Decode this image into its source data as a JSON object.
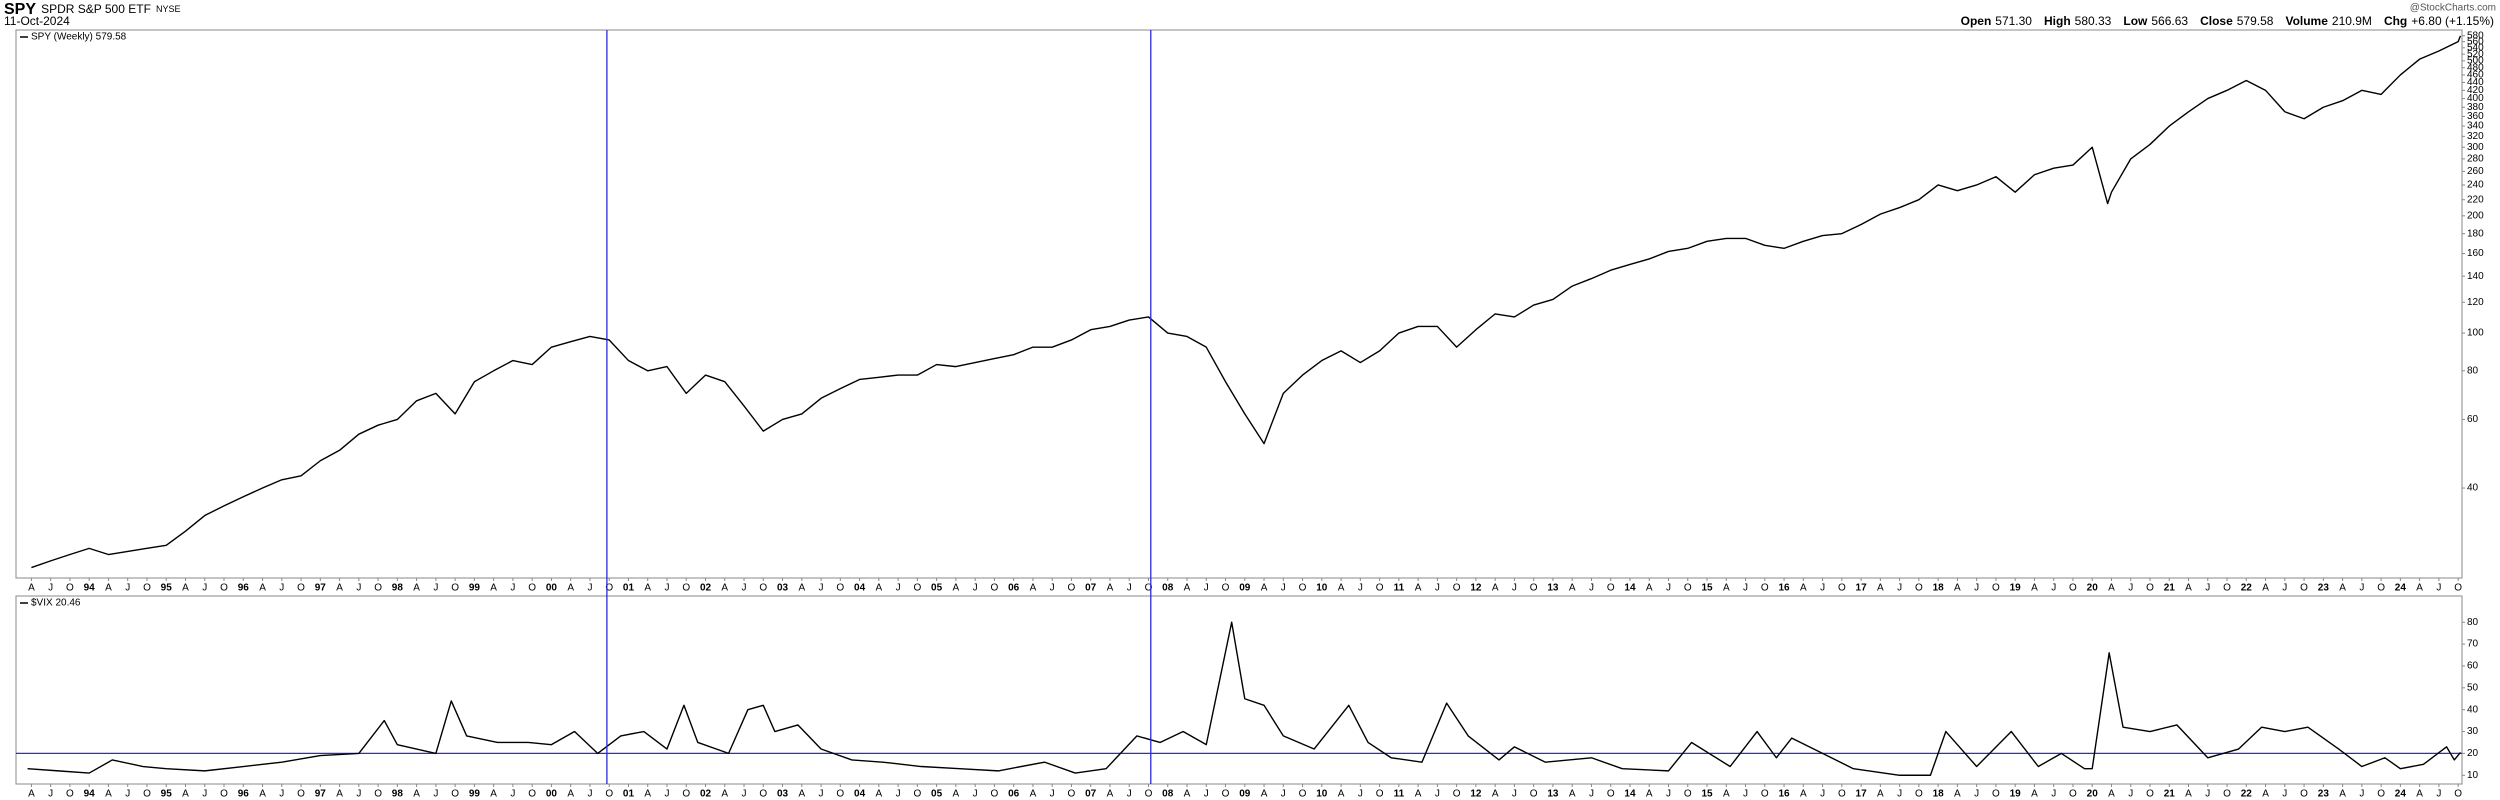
{
  "header": {
    "symbol": "SPY",
    "name": "SPDR S&P 500 ETF",
    "exchange": "NYSE",
    "date": "11-Oct-2024",
    "source": "@StockCharts.com",
    "quote": [
      {
        "label": "Open",
        "value": "571.30"
      },
      {
        "label": "High",
        "value": "580.33"
      },
      {
        "label": "Low",
        "value": "566.63"
      },
      {
        "label": "Close",
        "value": "579.58"
      },
      {
        "label": "Volume",
        "value": "210.9M"
      },
      {
        "label": "Chg",
        "value": "+6.80 (+1.15%)"
      }
    ]
  },
  "chart_data": [
    {
      "type": "line",
      "log_scale": true,
      "xlim": [
        1993.05,
        2024.8
      ],
      "ylim": [
        23.5,
        600
      ],
      "yticks": [
        40,
        60,
        80,
        100,
        120,
        140,
        160,
        180,
        200,
        220,
        240,
        260,
        280,
        300,
        320,
        340,
        360,
        380,
        400,
        420,
        440,
        460,
        480,
        500,
        520,
        540,
        560,
        580
      ],
      "xticks": [
        {
          "value": 1993.25,
          "label": "A"
        },
        {
          "value": 1993.5,
          "label": "J"
        },
        {
          "value": 1993.75,
          "label": "O"
        },
        {
          "value": 1994,
          "label": "94"
        },
        {
          "value": 1994.25,
          "label": "A"
        },
        {
          "value": 1994.5,
          "label": "J"
        },
        {
          "value": 1994.75,
          "label": "O"
        },
        {
          "value": 1995,
          "label": "95"
        },
        {
          "value": 1995.25,
          "label": "A"
        },
        {
          "value": 1995.5,
          "label": "J"
        },
        {
          "value": 1995.75,
          "label": "O"
        },
        {
          "value": 1996,
          "label": "96"
        },
        {
          "value": 1996.25,
          "label": "A"
        },
        {
          "value": 1996.5,
          "label": "J"
        },
        {
          "value": 1996.75,
          "label": "O"
        },
        {
          "value": 1997,
          "label": "97"
        },
        {
          "value": 1997.25,
          "label": "A"
        },
        {
          "value": 1997.5,
          "label": "J"
        },
        {
          "value": 1997.75,
          "label": "O"
        },
        {
          "value": 1998,
          "label": "98"
        },
        {
          "value": 1998.25,
          "label": "A"
        },
        {
          "value": 1998.5,
          "label": "J"
        },
        {
          "value": 1998.75,
          "label": "O"
        },
        {
          "value": 1999,
          "label": "99"
        },
        {
          "value": 1999.25,
          "label": "A"
        },
        {
          "value": 1999.5,
          "label": "J"
        },
        {
          "value": 1999.75,
          "label": "O"
        },
        {
          "value": 2000,
          "label": "00"
        },
        {
          "value": 2000.25,
          "label": "A"
        },
        {
          "value": 2000.5,
          "label": "J"
        },
        {
          "value": 2000.75,
          "label": "O"
        },
        {
          "value": 2001,
          "label": "01"
        },
        {
          "value": 2001.25,
          "label": "A"
        },
        {
          "value": 2001.5,
          "label": "J"
        },
        {
          "value": 2001.75,
          "label": "O"
        },
        {
          "value": 2002,
          "label": "02"
        },
        {
          "value": 2002.25,
          "label": "A"
        },
        {
          "value": 2002.5,
          "label": "J"
        },
        {
          "value": 2002.75,
          "label": "O"
        },
        {
          "value": 2003,
          "label": "03"
        },
        {
          "value": 2003.25,
          "label": "A"
        },
        {
          "value": 2003.5,
          "label": "J"
        },
        {
          "value": 2003.75,
          "label": "O"
        },
        {
          "value": 2004,
          "label": "04"
        },
        {
          "value": 2004.25,
          "label": "A"
        },
        {
          "value": 2004.5,
          "label": "J"
        },
        {
          "value": 2004.75,
          "label": "O"
        },
        {
          "value": 2005,
          "label": "05"
        },
        {
          "value": 2005.25,
          "label": "A"
        },
        {
          "value": 2005.5,
          "label": "J"
        },
        {
          "value": 2005.75,
          "label": "O"
        },
        {
          "value": 2006,
          "label": "06"
        },
        {
          "value": 2006.25,
          "label": "A"
        },
        {
          "value": 2006.5,
          "label": "J"
        },
        {
          "value": 2006.75,
          "label": "O"
        },
        {
          "value": 2007,
          "label": "07"
        },
        {
          "value": 2007.25,
          "label": "A"
        },
        {
          "value": 2007.5,
          "label": "J"
        },
        {
          "value": 2007.75,
          "label": "O"
        },
        {
          "value": 2008,
          "label": "08"
        },
        {
          "value": 2008.25,
          "label": "A"
        },
        {
          "value": 2008.5,
          "label": "J"
        },
        {
          "value": 2008.75,
          "label": "O"
        },
        {
          "value": 2009,
          "label": "09"
        },
        {
          "value": 2009.25,
          "label": "A"
        },
        {
          "value": 2009.5,
          "label": "J"
        },
        {
          "value": 2009.75,
          "label": "O"
        },
        {
          "value": 2010,
          "label": "10"
        },
        {
          "value": 2010.25,
          "label": "A"
        },
        {
          "value": 2010.5,
          "label": "J"
        },
        {
          "value": 2010.75,
          "label": "O"
        },
        {
          "value": 2011,
          "label": "11"
        },
        {
          "value": 2011.25,
          "label": "A"
        },
        {
          "value": 2011.5,
          "label": "J"
        },
        {
          "value": 2011.75,
          "label": "O"
        },
        {
          "value": 2012,
          "label": "12"
        },
        {
          "value": 2012.25,
          "label": "A"
        },
        {
          "value": 2012.5,
          "label": "J"
        },
        {
          "value": 2012.75,
          "label": "O"
        },
        {
          "value": 2013,
          "label": "13"
        },
        {
          "value": 2013.25,
          "label": "A"
        },
        {
          "value": 2013.5,
          "label": "J"
        },
        {
          "value": 2013.75,
          "label": "O"
        },
        {
          "value": 2014,
          "label": "14"
        },
        {
          "value": 2014.25,
          "label": "A"
        },
        {
          "value": 2014.5,
          "label": "J"
        },
        {
          "value": 2014.75,
          "label": "O"
        },
        {
          "value": 2015,
          "label": "15"
        },
        {
          "value": 2015.25,
          "label": "A"
        },
        {
          "value": 2015.5,
          "label": "J"
        },
        {
          "value": 2015.75,
          "label": "O"
        },
        {
          "value": 2016,
          "label": "16"
        },
        {
          "value": 2016.25,
          "label": "A"
        },
        {
          "value": 2016.5,
          "label": "J"
        },
        {
          "value": 2016.75,
          "label": "O"
        },
        {
          "value": 2017,
          "label": "17"
        },
        {
          "value": 2017.25,
          "label": "A"
        },
        {
          "value": 2017.5,
          "label": "J"
        },
        {
          "value": 2017.75,
          "label": "O"
        },
        {
          "value": 2018,
          "label": "18"
        },
        {
          "value": 2018.25,
          "label": "A"
        },
        {
          "value": 2018.5,
          "label": "J"
        },
        {
          "value": 2018.75,
          "label": "O"
        },
        {
          "value": 2019,
          "label": "19"
        },
        {
          "value": 2019.25,
          "label": "A"
        },
        {
          "value": 2019.5,
          "label": "J"
        },
        {
          "value": 2019.75,
          "label": "O"
        },
        {
          "value": 2020,
          "label": "20"
        },
        {
          "value": 2020.25,
          "label": "A"
        },
        {
          "value": 2020.5,
          "label": "J"
        },
        {
          "value": 2020.75,
          "label": "O"
        },
        {
          "value": 2021,
          "label": "21"
        },
        {
          "value": 2021.25,
          "label": "A"
        },
        {
          "value": 2021.5,
          "label": "J"
        },
        {
          "value": 2021.75,
          "label": "O"
        },
        {
          "value": 2022,
          "label": "22"
        },
        {
          "value": 2022.25,
          "label": "A"
        },
        {
          "value": 2022.5,
          "label": "J"
        },
        {
          "value": 2022.75,
          "label": "O"
        },
        {
          "value": 2023,
          "label": "23"
        },
        {
          "value": 2023.25,
          "label": "A"
        },
        {
          "value": 2023.5,
          "label": "J"
        },
        {
          "value": 2023.75,
          "label": "O"
        },
        {
          "value": 2024,
          "label": "24"
        },
        {
          "value": 2024.25,
          "label": "A"
        },
        {
          "value": 2024.5,
          "label": "J"
        },
        {
          "value": 2024.75,
          "label": "O"
        }
      ],
      "vlines": [
        2000.72,
        2007.78
      ],
      "vline_color": "#2b2bd9",
      "x": [
        1993.25,
        1993.5,
        1993.75,
        1994,
        1994.25,
        1994.5,
        1994.75,
        1995,
        1995.25,
        1995.5,
        1995.75,
        1996,
        1996.25,
        1996.5,
        1996.75,
        1997,
        1997.25,
        1997.5,
        1997.75,
        1998,
        1998.25,
        1998.5,
        1998.75,
        1999,
        1999.25,
        1999.5,
        1999.75,
        2000,
        2000.25,
        2000.5,
        2000.75,
        2001,
        2001.25,
        2001.5,
        2001.75,
        2002,
        2002.25,
        2002.5,
        2002.75,
        2003,
        2003.25,
        2003.5,
        2003.75,
        2004,
        2004.25,
        2004.5,
        2004.75,
        2005,
        2005.25,
        2005.5,
        2005.75,
        2006,
        2006.25,
        2006.5,
        2006.75,
        2007,
        2007.25,
        2007.5,
        2007.75,
        2008,
        2008.25,
        2008.5,
        2008.75,
        2009,
        2009.25,
        2009.5,
        2009.75,
        2010,
        2010.25,
        2010.5,
        2010.75,
        2011,
        2011.25,
        2011.5,
        2011.75,
        2012,
        2012.25,
        2012.5,
        2012.75,
        2013,
        2013.25,
        2013.5,
        2013.75,
        2014,
        2014.25,
        2014.5,
        2014.75,
        2015,
        2015.25,
        2015.5,
        2015.75,
        2016,
        2016.25,
        2016.5,
        2016.75,
        2017,
        2017.25,
        2017.5,
        2017.75,
        2018,
        2018.25,
        2018.5,
        2018.75,
        2019,
        2019.25,
        2019.5,
        2019.75,
        2020,
        2020.2,
        2020.25,
        2020.5,
        2020.75,
        2021,
        2021.25,
        2021.5,
        2021.75,
        2022,
        2022.25,
        2022.5,
        2022.75,
        2023,
        2023.25,
        2023.5,
        2023.75,
        2024,
        2024.25,
        2024.5,
        2024.75,
        2024.78
      ],
      "series": [
        {
          "name": "SPY (Weekly) 579.58",
          "color": "#000000",
          "values": [
            25,
            26,
            27,
            28,
            27,
            27.5,
            28,
            28.5,
            31,
            34,
            36,
            38,
            40,
            42,
            43,
            47,
            50,
            55,
            58,
            60,
            67,
            70,
            62,
            75,
            80,
            85,
            83,
            92,
            95,
            98,
            96,
            85,
            80,
            82,
            70,
            78,
            75,
            65,
            56,
            60,
            62,
            68,
            72,
            76,
            77,
            78,
            78,
            83,
            82,
            84,
            86,
            88,
            92,
            92,
            96,
            102,
            104,
            108,
            110,
            100,
            98,
            92,
            75,
            62,
            52,
            70,
            78,
            85,
            90,
            84,
            90,
            100,
            104,
            104,
            92,
            102,
            112,
            110,
            118,
            122,
            132,
            138,
            145,
            150,
            155,
            162,
            165,
            172,
            175,
            175,
            168,
            165,
            172,
            178,
            180,
            190,
            202,
            210,
            220,
            240,
            232,
            240,
            252,
            230,
            255,
            265,
            270,
            300,
            215,
            230,
            280,
            305,
            340,
            370,
            400,
            420,
            445,
            420,
            370,
            355,
            380,
            395,
            420,
            410,
            460,
            505,
            530,
            560,
            579.58
          ]
        }
      ]
    },
    {
      "type": "line",
      "log_scale": false,
      "xlim": [
        1993.05,
        2024.8
      ],
      "ylim": [
        6,
        92
      ],
      "yticks": [
        10,
        20,
        30,
        40,
        50,
        60,
        70,
        80
      ],
      "hline": 20,
      "hline_color": "#2b2bd9",
      "x": [
        1993.2,
        1993.6,
        1994.0,
        1994.3,
        1994.7,
        1995.0,
        1995.5,
        1996.0,
        1996.5,
        1997.0,
        1997.5,
        1997.83,
        1998.0,
        1998.5,
        1998.7,
        1998.9,
        1999.3,
        1999.7,
        2000.0,
        2000.3,
        2000.6,
        2000.9,
        2001.2,
        2001.5,
        2001.72,
        2001.9,
        2002.3,
        2002.55,
        2002.75,
        2002.9,
        2003.2,
        2003.5,
        2003.9,
        2004.3,
        2004.8,
        2005.3,
        2005.8,
        2006.4,
        2006.8,
        2007.2,
        2007.6,
        2007.9,
        2008.2,
        2008.5,
        2008.83,
        2009.0,
        2009.25,
        2009.5,
        2009.9,
        2010.35,
        2010.6,
        2010.9,
        2011.3,
        2011.62,
        2011.9,
        2012.3,
        2012.5,
        2012.9,
        2013.5,
        2013.9,
        2014.5,
        2014.8,
        2015.3,
        2015.65,
        2015.9,
        2016.1,
        2016.5,
        2016.9,
        2017.5,
        2017.9,
        2018.1,
        2018.5,
        2018.95,
        2019.3,
        2019.6,
        2019.9,
        2020.0,
        2020.22,
        2020.4,
        2020.75,
        2021.1,
        2021.5,
        2021.9,
        2022.2,
        2022.5,
        2022.8,
        2023.2,
        2023.5,
        2023.8,
        2024.0,
        2024.3,
        2024.6,
        2024.7,
        2024.78
      ],
      "series": [
        {
          "name": "$VIX 20.46",
          "color": "#000000",
          "values": [
            13,
            12,
            11,
            17,
            14,
            13,
            12,
            14,
            16,
            19,
            20,
            35,
            24,
            20,
            44,
            28,
            25,
            25,
            24,
            30,
            20,
            28,
            30,
            22,
            42,
            25,
            20,
            40,
            42,
            30,
            33,
            22,
            17,
            16,
            14,
            13,
            12,
            16,
            11,
            13,
            28,
            25,
            30,
            24,
            80,
            45,
            42,
            28,
            22,
            42,
            25,
            18,
            16,
            43,
            28,
            17,
            23,
            16,
            18,
            13,
            12,
            25,
            14,
            30,
            18,
            27,
            20,
            13,
            10,
            10,
            30,
            14,
            30,
            14,
            20,
            13,
            13,
            66,
            32,
            30,
            33,
            18,
            22,
            32,
            30,
            32,
            22,
            14,
            18,
            13,
            15,
            23,
            17,
            20.46
          ]
        }
      ]
    }
  ]
}
